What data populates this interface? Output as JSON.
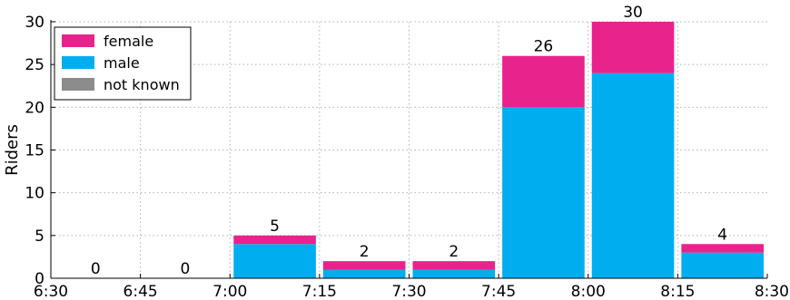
{
  "chart_data": {
    "type": "bar",
    "stacked": true,
    "ylabel": "Riders",
    "xlabel": "",
    "ylim": [
      0,
      30
    ],
    "yticks": [
      0,
      5,
      10,
      15,
      20,
      25,
      30
    ],
    "xticks": [
      "6:30",
      "6:45",
      "7:00",
      "7:15",
      "7:30",
      "7:45",
      "8:00",
      "8:15",
      "8:30"
    ],
    "grid": true,
    "legend_position": "top-left",
    "categories": [
      "6:30",
      "6:45",
      "7:00",
      "7:15",
      "7:30",
      "7:45",
      "8:00",
      "8:15"
    ],
    "series": [
      {
        "name": "female",
        "color": "#e8238c",
        "values": [
          0,
          0,
          1,
          1,
          1,
          6,
          6,
          1
        ]
      },
      {
        "name": "male",
        "color": "#00aeef",
        "values": [
          0,
          0,
          4,
          1,
          1,
          20,
          24,
          3
        ]
      },
      {
        "name": "not known",
        "color": "#8c8c8c",
        "values": [
          0,
          0,
          0,
          0,
          0,
          0,
          0,
          0
        ]
      }
    ],
    "totals": [
      "0",
      "0",
      "5",
      "2",
      "2",
      "26",
      "30",
      "4"
    ]
  }
}
